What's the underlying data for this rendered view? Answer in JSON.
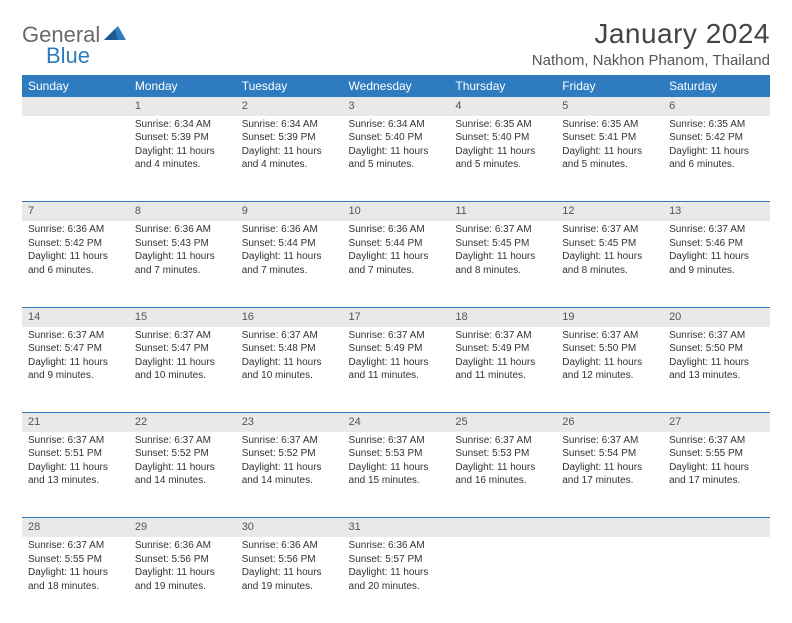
{
  "brand": {
    "line1": "General",
    "line2": "Blue",
    "accent": "#2f7bbf"
  },
  "title": "January 2024",
  "location": "Nathom, Nakhon Phanom, Thailand",
  "colors": {
    "header_bg": "#2f7bbf",
    "header_fg": "#ffffff",
    "daynum_bg": "#e9e9e9",
    "rule": "#2f7bbf"
  },
  "weekdays": [
    "Sunday",
    "Monday",
    "Tuesday",
    "Wednesday",
    "Thursday",
    "Friday",
    "Saturday"
  ],
  "weeks": [
    [
      {
        "n": "",
        "lines": []
      },
      {
        "n": "1",
        "lines": [
          "Sunrise: 6:34 AM",
          "Sunset: 5:39 PM",
          "Daylight: 11 hours and 4 minutes."
        ]
      },
      {
        "n": "2",
        "lines": [
          "Sunrise: 6:34 AM",
          "Sunset: 5:39 PM",
          "Daylight: 11 hours and 4 minutes."
        ]
      },
      {
        "n": "3",
        "lines": [
          "Sunrise: 6:34 AM",
          "Sunset: 5:40 PM",
          "Daylight: 11 hours and 5 minutes."
        ]
      },
      {
        "n": "4",
        "lines": [
          "Sunrise: 6:35 AM",
          "Sunset: 5:40 PM",
          "Daylight: 11 hours and 5 minutes."
        ]
      },
      {
        "n": "5",
        "lines": [
          "Sunrise: 6:35 AM",
          "Sunset: 5:41 PM",
          "Daylight: 11 hours and 5 minutes."
        ]
      },
      {
        "n": "6",
        "lines": [
          "Sunrise: 6:35 AM",
          "Sunset: 5:42 PM",
          "Daylight: 11 hours and 6 minutes."
        ]
      }
    ],
    [
      {
        "n": "7",
        "lines": [
          "Sunrise: 6:36 AM",
          "Sunset: 5:42 PM",
          "Daylight: 11 hours and 6 minutes."
        ]
      },
      {
        "n": "8",
        "lines": [
          "Sunrise: 6:36 AM",
          "Sunset: 5:43 PM",
          "Daylight: 11 hours and 7 minutes."
        ]
      },
      {
        "n": "9",
        "lines": [
          "Sunrise: 6:36 AM",
          "Sunset: 5:44 PM",
          "Daylight: 11 hours and 7 minutes."
        ]
      },
      {
        "n": "10",
        "lines": [
          "Sunrise: 6:36 AM",
          "Sunset: 5:44 PM",
          "Daylight: 11 hours and 7 minutes."
        ]
      },
      {
        "n": "11",
        "lines": [
          "Sunrise: 6:37 AM",
          "Sunset: 5:45 PM",
          "Daylight: 11 hours and 8 minutes."
        ]
      },
      {
        "n": "12",
        "lines": [
          "Sunrise: 6:37 AM",
          "Sunset: 5:45 PM",
          "Daylight: 11 hours and 8 minutes."
        ]
      },
      {
        "n": "13",
        "lines": [
          "Sunrise: 6:37 AM",
          "Sunset: 5:46 PM",
          "Daylight: 11 hours and 9 minutes."
        ]
      }
    ],
    [
      {
        "n": "14",
        "lines": [
          "Sunrise: 6:37 AM",
          "Sunset: 5:47 PM",
          "Daylight: 11 hours and 9 minutes."
        ]
      },
      {
        "n": "15",
        "lines": [
          "Sunrise: 6:37 AM",
          "Sunset: 5:47 PM",
          "Daylight: 11 hours and 10 minutes."
        ]
      },
      {
        "n": "16",
        "lines": [
          "Sunrise: 6:37 AM",
          "Sunset: 5:48 PM",
          "Daylight: 11 hours and 10 minutes."
        ]
      },
      {
        "n": "17",
        "lines": [
          "Sunrise: 6:37 AM",
          "Sunset: 5:49 PM",
          "Daylight: 11 hours and 11 minutes."
        ]
      },
      {
        "n": "18",
        "lines": [
          "Sunrise: 6:37 AM",
          "Sunset: 5:49 PM",
          "Daylight: 11 hours and 11 minutes."
        ]
      },
      {
        "n": "19",
        "lines": [
          "Sunrise: 6:37 AM",
          "Sunset: 5:50 PM",
          "Daylight: 11 hours and 12 minutes."
        ]
      },
      {
        "n": "20",
        "lines": [
          "Sunrise: 6:37 AM",
          "Sunset: 5:50 PM",
          "Daylight: 11 hours and 13 minutes."
        ]
      }
    ],
    [
      {
        "n": "21",
        "lines": [
          "Sunrise: 6:37 AM",
          "Sunset: 5:51 PM",
          "Daylight: 11 hours and 13 minutes."
        ]
      },
      {
        "n": "22",
        "lines": [
          "Sunrise: 6:37 AM",
          "Sunset: 5:52 PM",
          "Daylight: 11 hours and 14 minutes."
        ]
      },
      {
        "n": "23",
        "lines": [
          "Sunrise: 6:37 AM",
          "Sunset: 5:52 PM",
          "Daylight: 11 hours and 14 minutes."
        ]
      },
      {
        "n": "24",
        "lines": [
          "Sunrise: 6:37 AM",
          "Sunset: 5:53 PM",
          "Daylight: 11 hours and 15 minutes."
        ]
      },
      {
        "n": "25",
        "lines": [
          "Sunrise: 6:37 AM",
          "Sunset: 5:53 PM",
          "Daylight: 11 hours and 16 minutes."
        ]
      },
      {
        "n": "26",
        "lines": [
          "Sunrise: 6:37 AM",
          "Sunset: 5:54 PM",
          "Daylight: 11 hours and 17 minutes."
        ]
      },
      {
        "n": "27",
        "lines": [
          "Sunrise: 6:37 AM",
          "Sunset: 5:55 PM",
          "Daylight: 11 hours and 17 minutes."
        ]
      }
    ],
    [
      {
        "n": "28",
        "lines": [
          "Sunrise: 6:37 AM",
          "Sunset: 5:55 PM",
          "Daylight: 11 hours and 18 minutes."
        ]
      },
      {
        "n": "29",
        "lines": [
          "Sunrise: 6:36 AM",
          "Sunset: 5:56 PM",
          "Daylight: 11 hours and 19 minutes."
        ]
      },
      {
        "n": "30",
        "lines": [
          "Sunrise: 6:36 AM",
          "Sunset: 5:56 PM",
          "Daylight: 11 hours and 19 minutes."
        ]
      },
      {
        "n": "31",
        "lines": [
          "Sunrise: 6:36 AM",
          "Sunset: 5:57 PM",
          "Daylight: 11 hours and 20 minutes."
        ]
      },
      {
        "n": "",
        "lines": []
      },
      {
        "n": "",
        "lines": []
      },
      {
        "n": "",
        "lines": []
      }
    ]
  ]
}
